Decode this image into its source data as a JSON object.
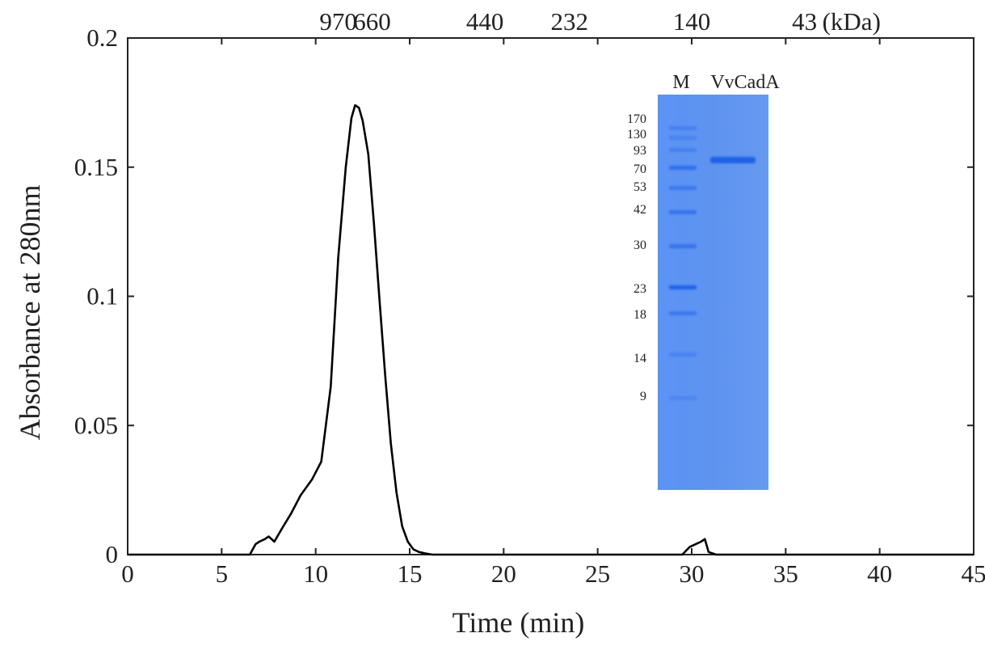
{
  "chart_data": {
    "type": "line",
    "xlabel": "Time (min)",
    "ylabel": "Absorbance at 280nm",
    "xlim": [
      0,
      45
    ],
    "ylim": [
      0,
      0.2
    ],
    "x_ticks": [
      0,
      5,
      10,
      15,
      20,
      25,
      30,
      35,
      40,
      45
    ],
    "x_tick_labels": [
      "0",
      "5",
      "10",
      "15",
      "20",
      "25",
      "30",
      "35",
      "40",
      "45"
    ],
    "y_ticks": [
      0,
      0.05,
      0.1,
      0.15,
      0.2
    ],
    "y_tick_labels": [
      "0",
      "0.05",
      "0.1",
      "0.15",
      "0.2"
    ],
    "grid": false,
    "series": [
      {
        "color": "#000000",
        "x": [
          0,
          6.5,
          6.8,
          7.0,
          7.3,
          7.5,
          7.8,
          8.2,
          8.7,
          9.2,
          9.8,
          10.3,
          10.8,
          11.2,
          11.6,
          11.9,
          12.1,
          12.3,
          12.5,
          12.8,
          13.1,
          13.4,
          13.7,
          14.0,
          14.3,
          14.6,
          14.9,
          15.2,
          15.5,
          15.8,
          16.2,
          17,
          20,
          25,
          29.5,
          29.9,
          30.2,
          30.5,
          30.7,
          30.9,
          31.3,
          35,
          40,
          45
        ],
        "y": [
          0,
          0,
          0.004,
          0.005,
          0.006,
          0.007,
          0.005,
          0.01,
          0.016,
          0.023,
          0.029,
          0.036,
          0.065,
          0.115,
          0.15,
          0.169,
          0.174,
          0.173,
          0.168,
          0.155,
          0.128,
          0.098,
          0.069,
          0.043,
          0.024,
          0.011,
          0.005,
          0.002,
          0.001,
          0.0005,
          0,
          0,
          0,
          0,
          0,
          0.003,
          0.004,
          0.005,
          0.006,
          0.001,
          0,
          0,
          0,
          0
        ]
      }
    ],
    "annotations": {
      "markers": [
        {
          "label": "970",
          "x": 11.2
        },
        {
          "label": "660",
          "x": 13.0
        },
        {
          "label": "440",
          "x": 19.0
        },
        {
          "label": "232",
          "x": 23.5
        },
        {
          "label": "140",
          "x": 30.0
        },
        {
          "label": "43",
          "x": 36.0
        }
      ],
      "marker_unit": "(kDa)"
    },
    "inset": {
      "lane_labels": [
        "M",
        "VvCadA"
      ],
      "marker_weights": [
        "170",
        "130",
        "93",
        "70",
        "53",
        "42",
        "30",
        "23",
        "18",
        "14",
        "9"
      ],
      "gel_color": "#5a8ff0",
      "band_color": "#1f5fe8"
    }
  }
}
